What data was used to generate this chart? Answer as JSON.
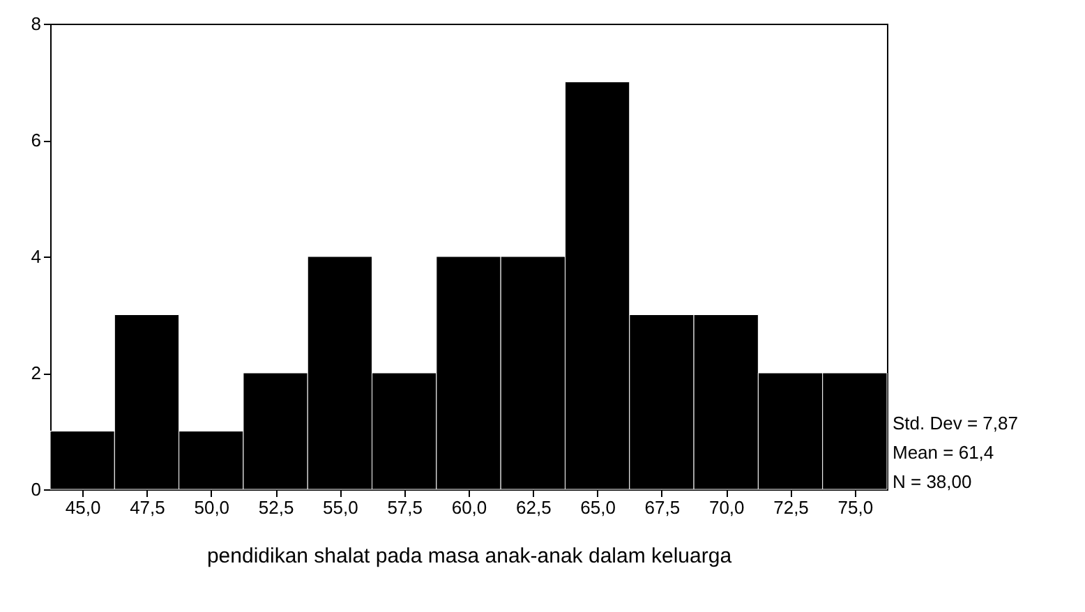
{
  "chart_data": {
    "type": "histogram",
    "xlabel": "pendidikan shalat pada masa anak-anak dalam keluarga",
    "bins": [
      43.75,
      46.25,
      48.75,
      51.25,
      53.75,
      56.25,
      58.75,
      61.25,
      63.75,
      66.25,
      68.75,
      71.25,
      73.75,
      76.25
    ],
    "values": [
      1,
      3,
      1,
      2,
      4,
      2,
      4,
      4,
      7,
      3,
      3,
      2,
      2
    ],
    "color": "#000000",
    "xlim": [
      43.75,
      76.25
    ],
    "xticks": [
      {
        "value": 45,
        "label": "45,0"
      },
      {
        "value": 47.5,
        "label": "47,5"
      },
      {
        "value": 50,
        "label": "50,0"
      },
      {
        "value": 52.5,
        "label": "52,5"
      },
      {
        "value": 55,
        "label": "55,0"
      },
      {
        "value": 57.5,
        "label": "57,5"
      },
      {
        "value": 60,
        "label": "60,0"
      },
      {
        "value": 62.5,
        "label": "62,5"
      },
      {
        "value": 65,
        "label": "65,0"
      },
      {
        "value": 67.5,
        "label": "67,5"
      },
      {
        "value": 70,
        "label": "70,0"
      },
      {
        "value": 72.5,
        "label": "72,5"
      },
      {
        "value": 75,
        "label": "75,0"
      }
    ],
    "ylim": [
      0,
      8
    ],
    "yticks": [
      0,
      2,
      4,
      6,
      8
    ],
    "grid": false,
    "annotations": [
      "Std. Dev = 7,87",
      "Mean = 61,4",
      "N = 38,00"
    ]
  }
}
